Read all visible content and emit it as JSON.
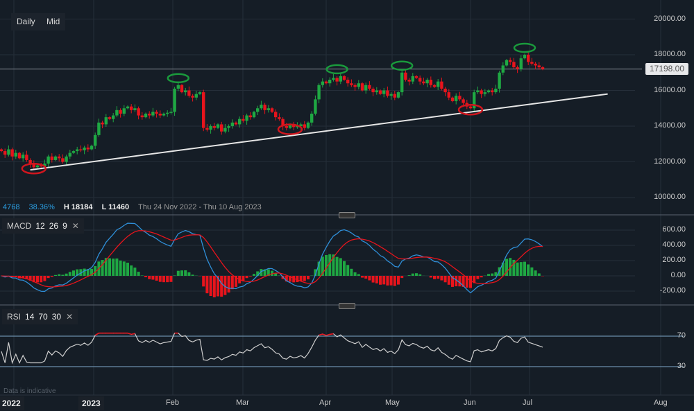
{
  "toolbar": {
    "interval": "Daily",
    "price_type": "Mid"
  },
  "stats": {
    "change": "4768",
    "change_pct": "38.36%",
    "high": "H 18184",
    "low": "L 11460",
    "range": "Thu 24 Nov 2022 - Thu 10 Aug 2023"
  },
  "last_price": "17198.00",
  "note": "Data is indicative",
  "colors": {
    "up": "#1fa843",
    "down": "#e8141c",
    "macd": "#2f8fd8",
    "signal": "#e8141c",
    "rsi": "#cfcfcf",
    "bg": "#151d26"
  },
  "chart_data": [
    {
      "type": "candlestick",
      "title": "Price",
      "ylim": [
        9000,
        21000
      ],
      "yticks": [
        "20000.00",
        "18000.00",
        "16000.00",
        "14000.00",
        "12000.00",
        "10000.00"
      ],
      "ytick_values": [
        20000,
        18000,
        16000,
        14000,
        12000,
        10000
      ],
      "xticks": [
        "2022",
        "2023",
        "Feb",
        "Mar",
        "Apr",
        "May",
        "Jun",
        "Jul",
        "Aug"
      ],
      "closes": [
        12600,
        12400,
        12700,
        12300,
        12500,
        12200,
        12400,
        12100,
        11900,
        11700,
        11800,
        11750,
        11900,
        12300,
        12100,
        12300,
        12200,
        12000,
        12300,
        12500,
        12600,
        12700,
        12650,
        12800,
        12700,
        12900,
        13500,
        14200,
        14100,
        14500,
        14400,
        14600,
        14900,
        14700,
        15000,
        15100,
        14900,
        15000,
        14600,
        14500,
        14700,
        14600,
        14800,
        14700,
        14600,
        14700,
        14750,
        14800,
        16100,
        16300,
        15900,
        16000,
        15700,
        15600,
        15800,
        15900,
        13900,
        13800,
        14000,
        13900,
        14100,
        13700,
        13900,
        14000,
        14200,
        14100,
        14400,
        14300,
        14600,
        14500,
        14800,
        15000,
        15200,
        14900,
        15000,
        14800,
        14500,
        14400,
        14000,
        13900,
        14100,
        13950,
        14000,
        14100,
        13900,
        14200,
        14700,
        15500,
        16300,
        16500,
        16400,
        16600,
        16700,
        16500,
        16800,
        16600,
        16400,
        16300,
        16200,
        16400,
        16000,
        16300,
        16100,
        15900,
        16000,
        15800,
        16000,
        15700,
        15800,
        15600,
        15900,
        17000,
        16600,
        16500,
        16800,
        16700,
        16500,
        16400,
        16600,
        16300,
        16200,
        16500,
        16100,
        15900,
        15600,
        15400,
        15700,
        15500,
        15300,
        15100,
        15000,
        15900,
        16000,
        15800,
        15900,
        16000,
        15900,
        16100,
        17000,
        17400,
        17700,
        17600,
        17300,
        17200,
        17800,
        18000,
        17600,
        17500,
        17400,
        17300,
        17198
      ],
      "support_line": {
        "from_index": 8,
        "from_price": 11550,
        "to_index": 168,
        "to_price": 15800
      },
      "resistance_level": 17198,
      "annotations": {
        "lows_circled": [
          9,
          80,
          130
        ],
        "highs_circled": [
          49,
          93,
          111,
          145
        ]
      }
    },
    {
      "type": "line+bar",
      "title": "MACD",
      "params": [
        "12",
        "26",
        "9"
      ],
      "ylim": [
        -300,
        700
      ],
      "yticks": [
        "600.00",
        "400.00",
        "200.00",
        "0.00",
        "-200.00"
      ],
      "ytick_values": [
        600,
        400,
        200,
        0,
        -200
      ],
      "series": [
        {
          "name": "MACD"
        },
        {
          "name": "Signal"
        },
        {
          "name": "Histogram"
        }
      ]
    },
    {
      "type": "line",
      "title": "RSI",
      "params": [
        "14",
        "70",
        "30"
      ],
      "ylim": [
        15,
        85
      ],
      "yticks": [
        "70",
        "30"
      ],
      "ytick_values": [
        70,
        30
      ]
    }
  ]
}
